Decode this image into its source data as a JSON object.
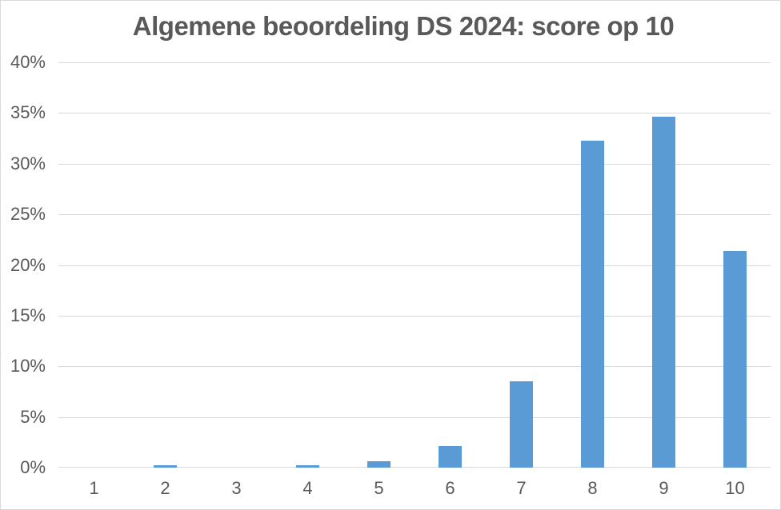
{
  "chart_data": {
    "type": "bar",
    "title": "Algemene beoordeling DS 2024: score op 10",
    "categories": [
      "1",
      "2",
      "3",
      "4",
      "5",
      "6",
      "7",
      "8",
      "9",
      "10"
    ],
    "values": [
      0,
      0.2,
      0,
      0.2,
      0.6,
      2.1,
      8.5,
      32.3,
      34.6,
      21.4
    ],
    "value_unit": "%",
    "xlabel": "",
    "ylabel": "",
    "ylim": [
      0,
      40
    ],
    "ytick_step": 5,
    "ytick_labels": [
      "0%",
      "5%",
      "10%",
      "15%",
      "20%",
      "25%",
      "30%",
      "35%",
      "40%"
    ],
    "grid": "horizontal",
    "legend_position": "none"
  },
  "colors": {
    "bar_fill": "#5B9BD5",
    "title_text": "#595959",
    "axis_text": "#595959",
    "gridline": "#D9D9D9",
    "frame_border": "#D9D9D9",
    "background": "#FFFFFF"
  }
}
